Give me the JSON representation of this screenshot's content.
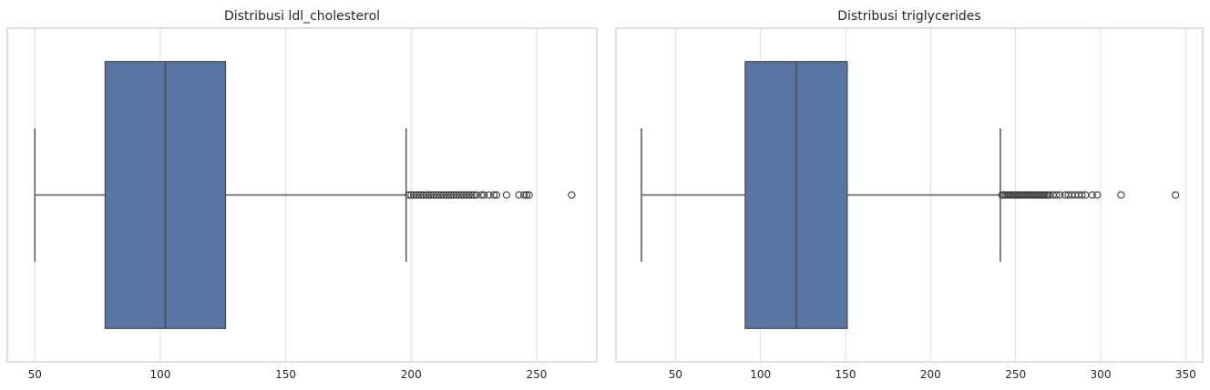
{
  "chart_data": [
    {
      "type": "box",
      "title": "Distribusi ldl_cholesterol",
      "xlabel": "",
      "ylabel": "",
      "xlim": [
        39,
        274
      ],
      "xticks": [
        50,
        100,
        150,
        200,
        250
      ],
      "grid": true,
      "box": {
        "whisker_low": 50,
        "q1": 78,
        "median": 102,
        "q3": 126,
        "whisker_high": 198
      },
      "outliers": [
        199,
        200,
        201,
        202,
        203,
        204,
        205,
        206,
        207,
        208,
        209,
        210,
        211,
        212,
        213,
        214,
        215,
        216,
        217,
        218,
        219,
        220,
        221,
        222,
        223,
        224,
        225,
        226,
        228,
        229,
        231,
        233,
        234,
        238,
        243,
        245,
        246,
        247,
        264
      ],
      "color": "#5875a4"
    },
    {
      "type": "box",
      "title": "Distribusi triglycerides",
      "xlabel": "",
      "ylabel": "",
      "xlim": [
        15,
        360
      ],
      "xticks": [
        50,
        100,
        150,
        200,
        250,
        300,
        350
      ],
      "grid": true,
      "box": {
        "whisker_low": 30,
        "q1": 91,
        "median": 121,
        "q3": 151,
        "whisker_high": 241
      },
      "outliers": [
        242,
        243,
        244,
        245,
        246,
        247,
        248,
        249,
        250,
        251,
        252,
        253,
        254,
        255,
        256,
        257,
        258,
        259,
        260,
        261,
        262,
        263,
        264,
        265,
        266,
        267,
        268,
        269,
        270,
        272,
        274,
        276,
        279,
        281,
        283,
        285,
        287,
        289,
        291,
        295,
        298,
        312,
        344
      ],
      "color": "#5875a4"
    }
  ]
}
